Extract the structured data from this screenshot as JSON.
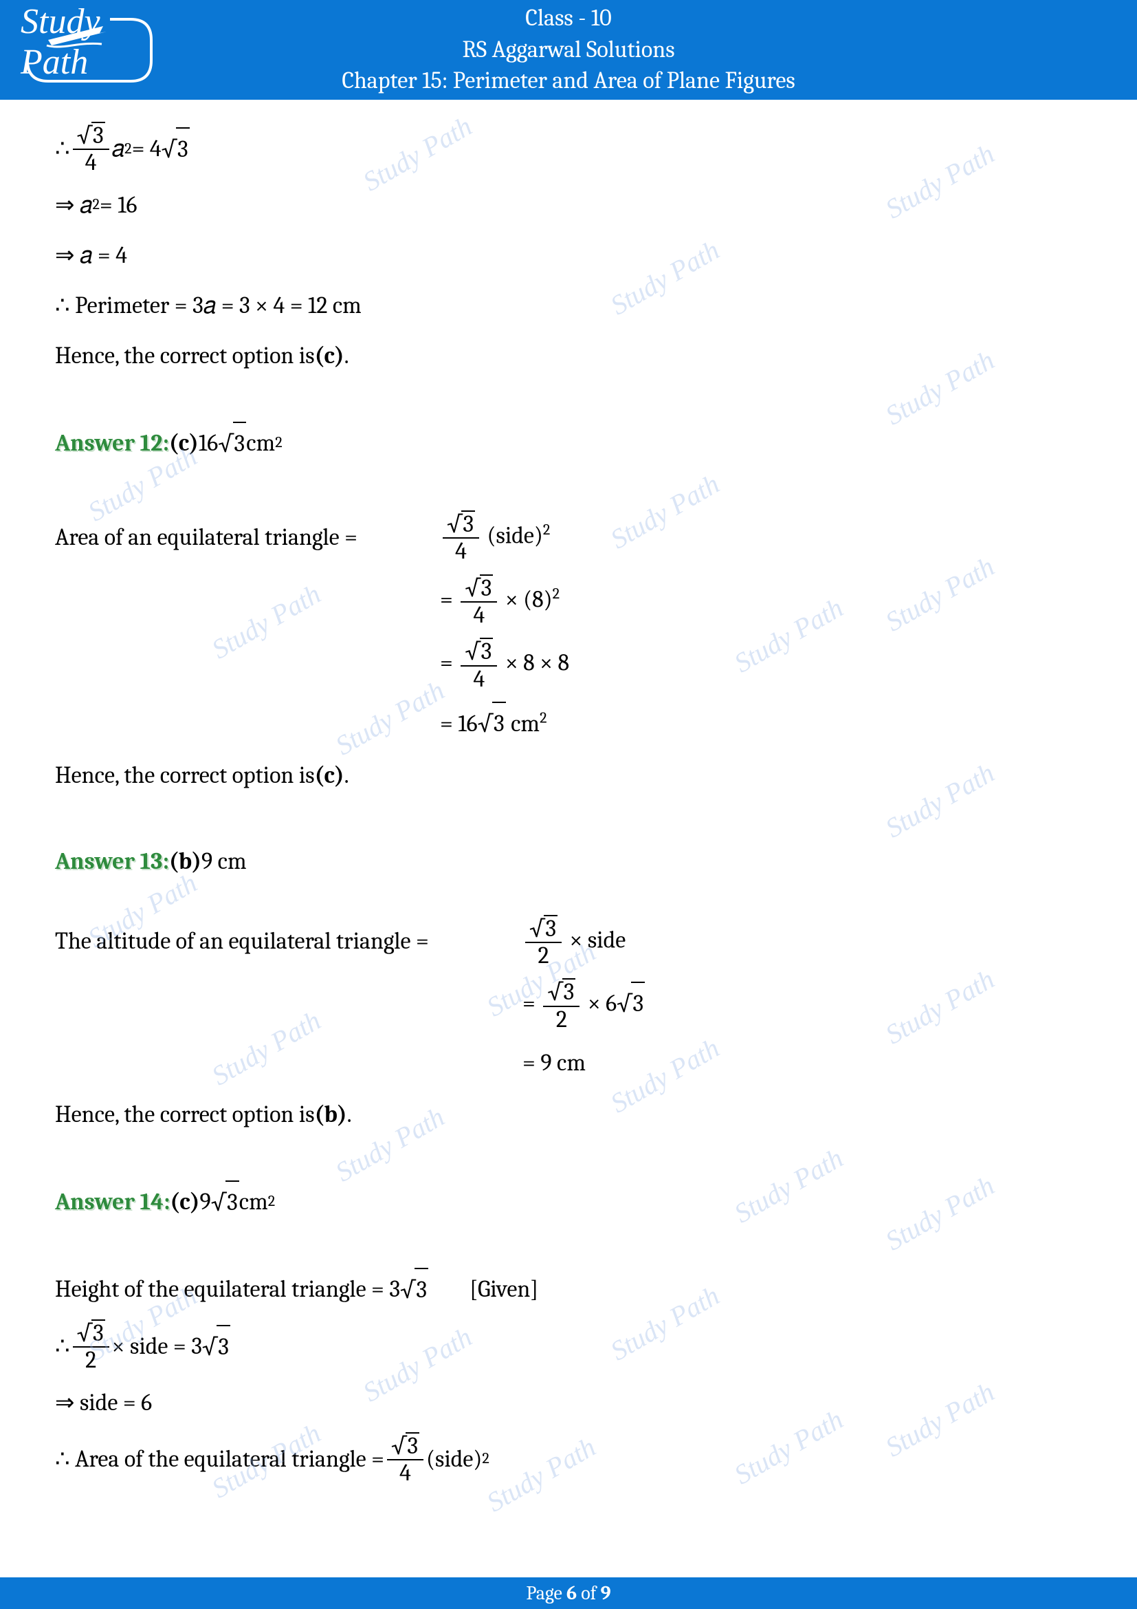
{
  "header": {
    "class_line": "Class - 10",
    "title_line": "RS Aggarwal Solutions",
    "chapter_line": "Chapter 15: Perimeter and Area of Plane Figures",
    "logo_text": "Study Path"
  },
  "content": {
    "sec11": {
      "line1_pre": "∴ ",
      "line1_num": "3",
      "line1_den": "4",
      "line1_post1": " 𝑎",
      "line1_sup1": "2",
      "line1_post2": " = 4",
      "line1_sqrt": "3",
      "line2": "⇒ 𝑎",
      "line2_sup": "2",
      "line2_post": " = 16",
      "line3": "⇒ 𝑎 = 4",
      "line4": "∴ Perimeter = 3𝑎 = 3 × 4 = 12 cm",
      "conclude_pre": "Hence, the correct option is ",
      "conclude_opt": "(c)",
      "conclude_post": "."
    },
    "ans12": {
      "label": "Answer 12: ",
      "opt": "(c)",
      "val_pre": " 16",
      "val_sqrt": "3",
      "val_post": " cm",
      "val_sup": "2",
      "intro": "Area of an equilateral triangle = ",
      "f_num_sqrt": "3",
      "f_den": "4",
      "side_txt": " (side)",
      "side_sup": "2",
      "r2_pre": "= ",
      "r2_post": " × (8)",
      "r2_sup": "2",
      "r3_pre": "= ",
      "r3_post": " × 8 × 8",
      "r4_pre": "= 16",
      "r4_sqrt": "3",
      "r4_post": " cm",
      "r4_sup": "2",
      "conclude_pre": "Hence, the correct option is ",
      "conclude_opt": "(c)",
      "conclude_post": "."
    },
    "ans13": {
      "label": "Answer 13: ",
      "opt": "(b)",
      "val": " 9 cm",
      "intro": "The altitude of an equilateral triangle = ",
      "f_num_sqrt": "3",
      "f_den": "2",
      "side_txt": " × side",
      "r2_pre": "= ",
      "r2_mid": " × 6",
      "r2_sqrt": "3",
      "r3": "= 9 cm",
      "conclude_pre": "Hence, the correct option is ",
      "conclude_opt": "(b)",
      "conclude_post": "."
    },
    "ans14": {
      "label": "Answer 14: ",
      "opt": "(c)",
      "val_pre": " 9",
      "val_sqrt": "3",
      "val_post": " cm",
      "val_sup": "2",
      "line1_pre": "Height of the equilateral triangle = 3",
      "line1_sqrt": "3",
      "given": "[Given]",
      "line2_pre": "∴ ",
      "line2_num_sqrt": "3",
      "line2_den": "2",
      "line2_mid": " × side = 3",
      "line2_sqrt2": "3",
      "line3": "⇒ side = 6",
      "line4_pre": "∴ Area of the equilateral triangle = ",
      "line4_num_sqrt": "3",
      "line4_den": "4",
      "line4_post": " (side)",
      "line4_sup": "2"
    }
  },
  "footer": {
    "page_pre": "Page ",
    "page_num": "6",
    "page_mid": " of ",
    "page_total": "9"
  },
  "watermark_text": "Study Path",
  "colors": {
    "header_bg": "#0b77d4",
    "answer_green": "#2e8b3d",
    "watermark": "rgba(150,180,230,0.35)"
  }
}
